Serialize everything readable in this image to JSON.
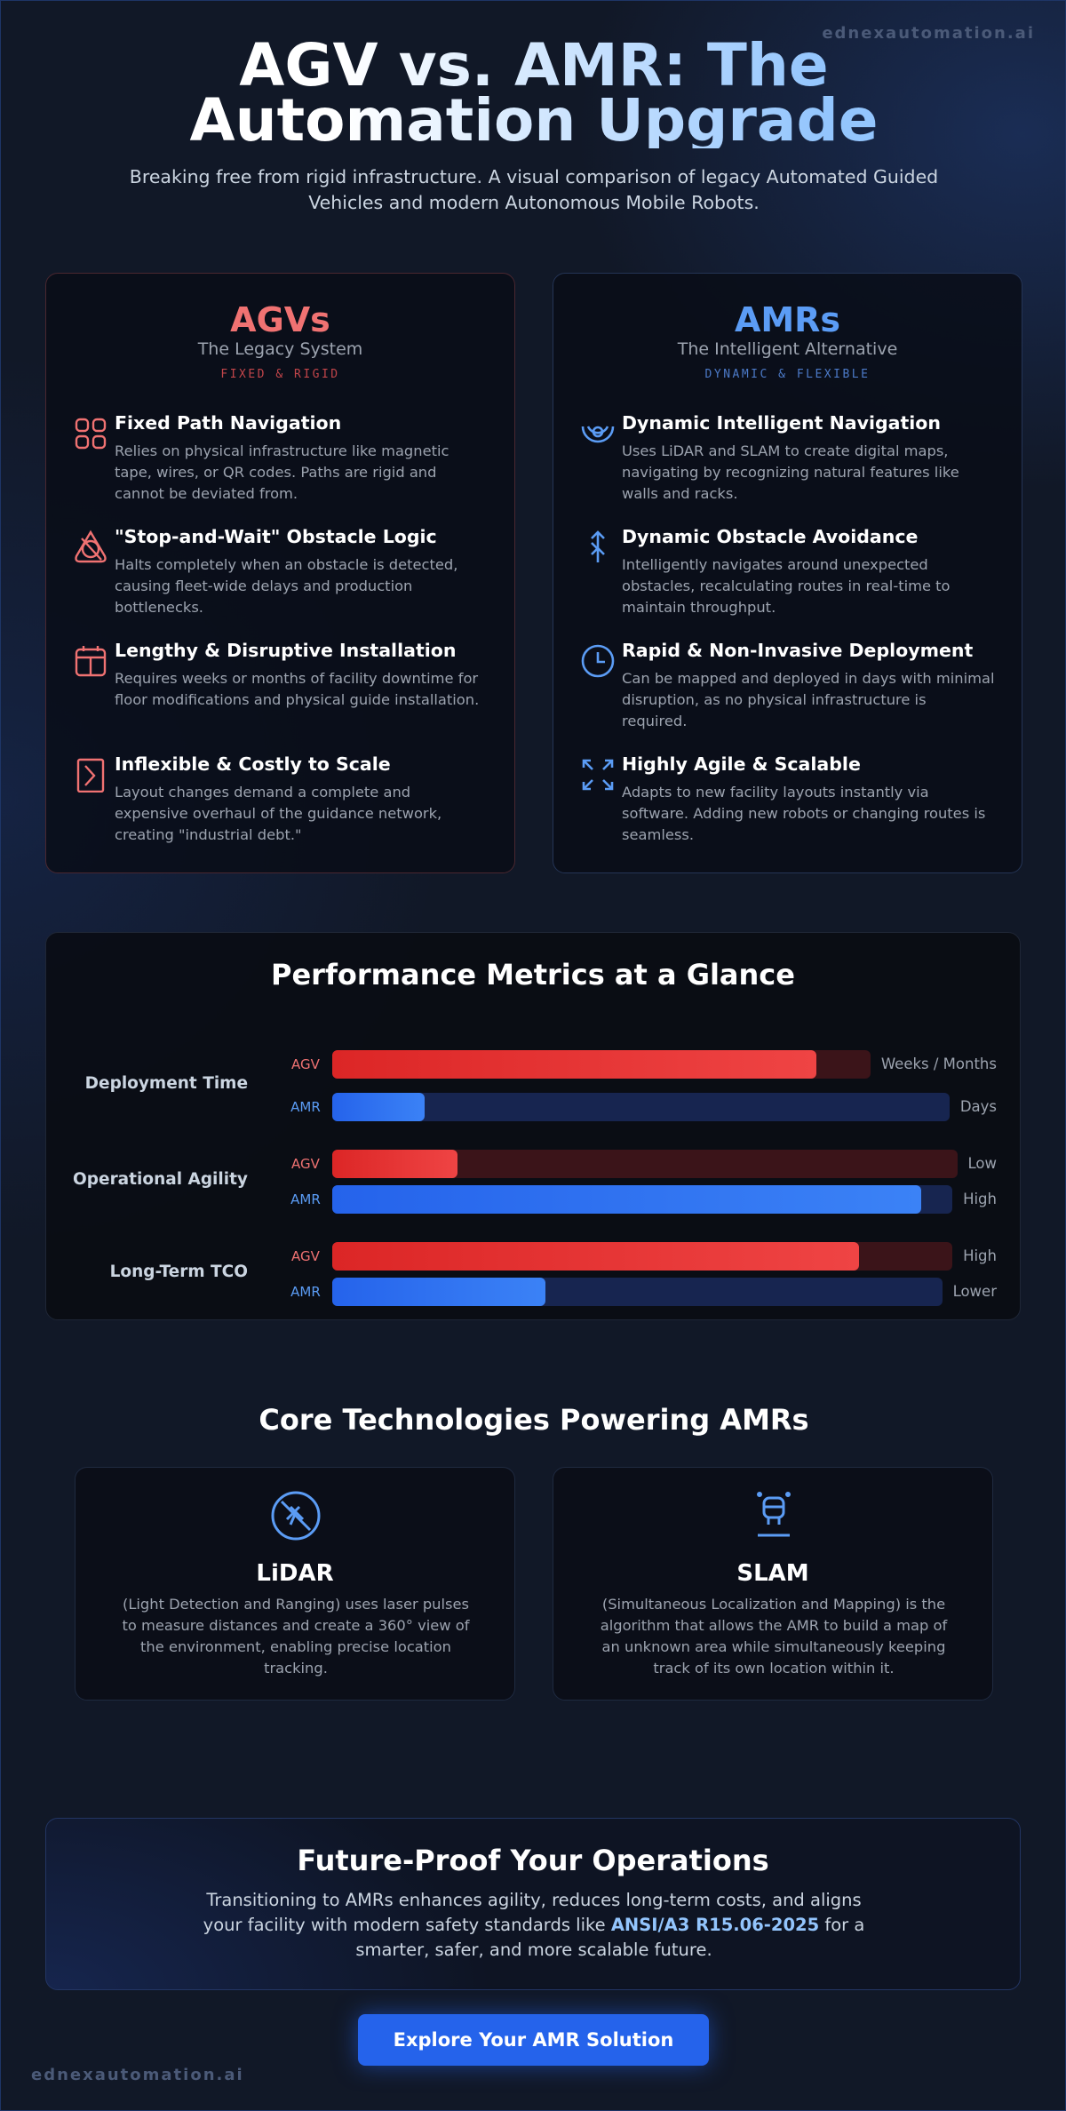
{
  "header": {
    "brand": "ednexautomation.ai",
    "title": "AGV vs. AMR: The Automation Upgrade",
    "subtitle": "Breaking free from rigid infrastructure. A visual comparison of legacy Automated Guided Vehicles and modern Autonomous Mobile Robots."
  },
  "comparison": [
    {
      "title": "AGVs",
      "subtitle": "The Legacy System",
      "tag": "FIXED & RIGID",
      "items": [
        {
          "heading": "Fixed Path Navigation",
          "text": "Relies on physical infrastructure like magnetic tape, wires, or QR codes. Paths are rigid and cannot be deviated from."
        },
        {
          "heading": "\"Stop-and-Wait\" Obstacle Logic",
          "text": "Halts completely when an obstacle is detected, causing fleet-wide delays and production bottlenecks."
        },
        {
          "heading": "Lengthy & Disruptive Installation",
          "text": "Requires weeks or months of facility downtime for floor modifications and physical guide installation."
        },
        {
          "heading": "Inflexible & Costly to Scale",
          "text": "Layout changes demand a complete and expensive overhaul of the guidance network, creating \"industrial debt.\""
        }
      ]
    },
    {
      "title": "AMRs",
      "subtitle": "The Intelligent Alternative",
      "tag": "DYNAMIC & FLEXIBLE",
      "items": [
        {
          "heading": "Dynamic Intelligent Navigation",
          "text": "Uses LiDAR and SLAM to create digital maps, navigating by recognizing natural features like walls and racks."
        },
        {
          "heading": "Dynamic Obstacle Avoidance",
          "text": "Intelligently navigates around unexpected obstacles, recalculating routes in real-time to maintain throughput."
        },
        {
          "heading": "Rapid & Non-Invasive Deployment",
          "text": "Can be mapped and deployed in days with minimal disruption, as no physical infrastructure is required."
        },
        {
          "heading": "Highly Agile & Scalable",
          "text": "Adapts to new facility layouts instantly via software. Adding new robots or changing routes is seamless."
        }
      ]
    }
  ],
  "metrics": {
    "title": "Performance Metrics at a Glance",
    "rows": [
      {
        "label": "Deployment Time",
        "bars": [
          {
            "tag": "AGV",
            "value": 90,
            "label": "Weeks / Months"
          },
          {
            "tag": "AMR",
            "value": 15,
            "label": "Days"
          }
        ]
      },
      {
        "label": "Operational Agility",
        "bars": [
          {
            "tag": "AGV",
            "value": 20,
            "label": "Low"
          },
          {
            "tag": "AMR",
            "value": 95,
            "label": "High"
          }
        ]
      },
      {
        "label": "Long-Term TCO",
        "bars": [
          {
            "tag": "AGV",
            "value": 85,
            "label": "High"
          },
          {
            "tag": "AMR",
            "value": 35,
            "label": "Lower"
          }
        ]
      }
    ]
  },
  "technologies": {
    "title": "Core Technologies Powering AMRs",
    "cards": [
      {
        "name": "LiDAR",
        "text": "(Light Detection and Ranging) uses laser pulses to measure distances and create a 360° view of the environment, enabling precise location tracking."
      },
      {
        "name": "SLAM",
        "text": "(Simultaneous Localization and Mapping) is the algorithm that allows the AMR to build a map of an unknown area while simultaneously keeping track of its own location within it."
      }
    ]
  },
  "cta": {
    "title": "Future-Proof Your Operations",
    "text_before": "Transitioning to AMRs enhances agility, reduces long-term costs, and aligns your facility with modern safety standards like",
    "highlight": "ANSI/A3 R15.06-2025",
    "text_after": "for a smarter, safer, and more scalable future.",
    "button": "Explore Your AMR Solution"
  },
  "footer": {
    "brand": "ednexautomation.ai"
  }
}
